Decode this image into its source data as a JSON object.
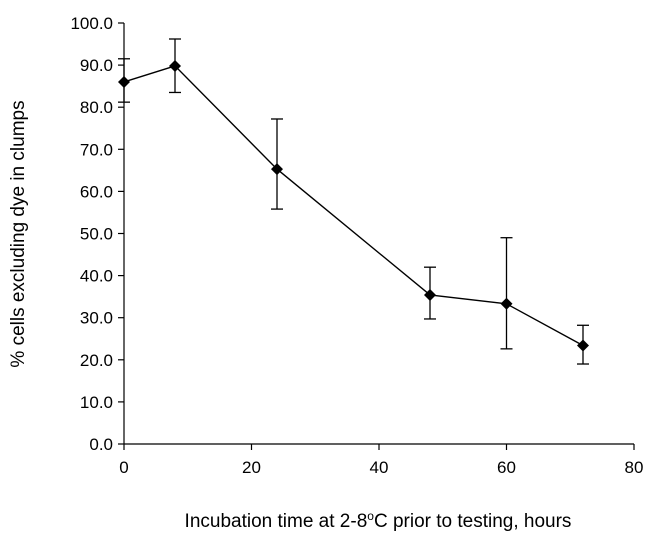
{
  "chart_data": {
    "type": "line",
    "title": "",
    "xlabel": {
      "prefix": "Incubation time at 2-8",
      "superscript": "o",
      "suffix": "C prior to testing, hours"
    },
    "ylabel": "% cells excluding dye in clumps",
    "xlim": [
      0,
      80
    ],
    "ylim": [
      0,
      100
    ],
    "x_ticks": [
      "0",
      "20",
      "40",
      "60",
      "80"
    ],
    "y_ticks": [
      "0.0",
      "10.0",
      "20.0",
      "30.0",
      "40.0",
      "50.0",
      "60.0",
      "70.0",
      "80.0",
      "90.0",
      "100.0"
    ],
    "grid": false,
    "legend": "none",
    "series": [
      {
        "marker": "diamond",
        "color": "#000000",
        "points": [
          {
            "x": 0,
            "y": 86.0,
            "lo": 81.2,
            "hi": 91.5
          },
          {
            "x": 8,
            "y": 89.8,
            "lo": 83.5,
            "hi": 96.2
          },
          {
            "x": 24,
            "y": 65.3,
            "lo": 55.8,
            "hi": 77.2
          },
          {
            "x": 48,
            "y": 35.4,
            "lo": 29.7,
            "hi": 42.0
          },
          {
            "x": 60,
            "y": 33.3,
            "lo": 22.6,
            "hi": 49.0
          },
          {
            "x": 72,
            "y": 23.4,
            "lo": 19.0,
            "hi": 28.2
          }
        ]
      }
    ]
  }
}
